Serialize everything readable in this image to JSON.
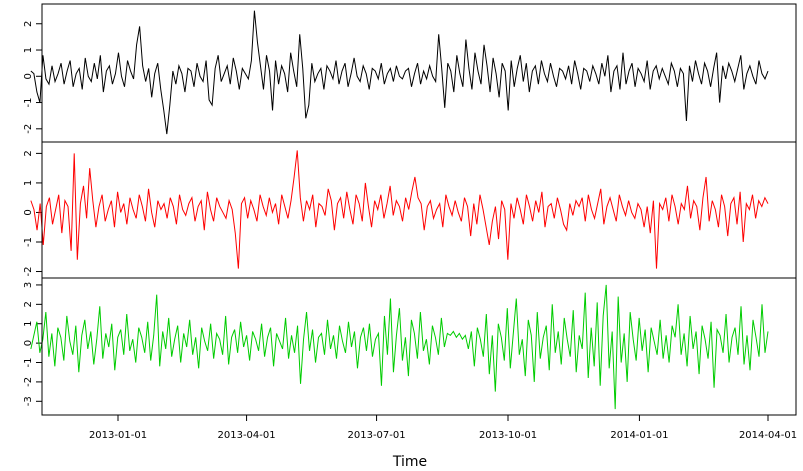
{
  "chart_data": {
    "type": "line",
    "xlabel": "Time",
    "x_start": "2012-11-01",
    "x_end": "2014-04-01",
    "x_ticks": [
      "2013-01-01",
      "2013-04-01",
      "2013-07-01",
      "2013-10-01",
      "2014-01-01",
      "2014-04-01"
    ],
    "panels": [
      {
        "color": "#000000",
        "ylim": [
          -2.35,
          2.6
        ],
        "yticks": [
          "-2",
          "-1",
          "0",
          "1",
          "2"
        ],
        "values": [
          0.2,
          0.1,
          -0.6,
          -1.0,
          0.8,
          -0.1,
          -0.3,
          0.4,
          -0.2,
          0.1,
          0.5,
          -0.3,
          0.2,
          0.6,
          -0.4,
          0.1,
          0.3,
          -0.5,
          0.7,
          0.0,
          -0.2,
          0.5,
          -0.1,
          0.8,
          -0.6,
          0.2,
          0.4,
          -0.3,
          0.1,
          0.9,
          0.0,
          -0.4,
          0.6,
          0.2,
          -0.1,
          1.2,
          1.9,
          0.4,
          -0.2,
          0.3,
          -0.8,
          0.1,
          0.5,
          -0.5,
          -1.3,
          -2.2,
          -1.1,
          0.2,
          -0.3,
          0.4,
          0.1,
          -0.6,
          0.3,
          0.2,
          -0.4,
          0.5,
          0.0,
          -0.2,
          0.6,
          -0.9,
          -1.1,
          0.3,
          0.8,
          -0.2,
          0.1,
          0.4,
          -0.3,
          0.7,
          0.2,
          -0.5,
          0.3,
          0.1,
          -0.1,
          0.6,
          2.5,
          1.3,
          0.4,
          -0.5,
          0.8,
          0.2,
          -1.3,
          0.6,
          -0.3,
          0.4,
          0.1,
          -0.6,
          0.9,
          0.2,
          -0.4,
          1.6,
          0.3,
          -1.6,
          -1.1,
          0.5,
          -0.2,
          0.1,
          0.3,
          -0.5,
          0.4,
          0.2,
          -0.1,
          0.6,
          -0.3,
          0.2,
          0.5,
          -0.4,
          0.1,
          0.7,
          0.0,
          -0.2,
          0.4,
          0.1,
          -0.5,
          0.3,
          0.2,
          -0.1,
          0.5,
          -0.3,
          0.1,
          0.3,
          -0.2,
          0.4,
          0.0,
          -0.1,
          0.2,
          0.3,
          -0.4,
          0.1,
          0.5,
          -0.3,
          0.2,
          -0.1,
          0.4,
          0.0,
          -0.2,
          1.6,
          0.3,
          -1.2,
          0.5,
          0.2,
          -0.6,
          0.8,
          0.1,
          -0.4,
          1.4,
          0.3,
          -0.5,
          0.9,
          0.2,
          -0.3,
          1.2,
          0.4,
          -0.6,
          0.7,
          0.1,
          -0.8,
          0.5,
          0.2,
          -1.3,
          0.6,
          -0.4,
          0.3,
          0.8,
          -0.2,
          0.5,
          -0.6,
          0.2,
          0.4,
          -0.3,
          0.6,
          0.1,
          -0.2,
          0.5,
          0.0,
          -0.4,
          0.3,
          0.2,
          -0.1,
          0.4,
          -0.3,
          0.6,
          0.1,
          -0.5,
          0.3,
          0.2,
          -0.2,
          0.4,
          0.1,
          -0.3,
          0.5,
          0.0,
          0.8,
          -0.6,
          0.2,
          0.4,
          -0.5,
          0.9,
          -0.3,
          0.2,
          0.5,
          -0.4,
          0.3,
          0.1,
          -0.2,
          0.6,
          -0.5,
          0.2,
          0.4,
          -0.1,
          0.3,
          0.0,
          -0.3,
          0.5,
          0.2,
          -0.4,
          0.3,
          0.1,
          -1.7,
          0.4,
          -0.2,
          0.6,
          0.1,
          -0.3,
          0.5,
          0.2,
          -0.4,
          0.3,
          0.9,
          -1.0,
          0.4,
          -0.1,
          0.5,
          0.2,
          -0.2,
          0.3,
          0.8,
          -0.5,
          0.1,
          0.4,
          0.0,
          -0.3,
          0.6,
          0.1,
          -0.1,
          0.2
        ]
      },
      {
        "color": "#ff0000",
        "ylim": [
          -2.05,
          2.25
        ],
        "yticks": [
          "-2",
          "-1",
          "0",
          "1",
          "2"
        ],
        "values": [
          0.4,
          0.1,
          -0.6,
          0.3,
          -1.1,
          0.2,
          0.5,
          -0.4,
          0.1,
          0.6,
          -0.7,
          0.4,
          0.2,
          -1.3,
          2.0,
          -1.6,
          0.3,
          0.9,
          -0.2,
          1.5,
          0.4,
          -0.5,
          0.2,
          0.6,
          -0.3,
          0.1,
          0.4,
          -0.5,
          0.7,
          0.0,
          0.3,
          -0.4,
          0.5,
          0.1,
          -0.2,
          0.6,
          0.2,
          -0.3,
          0.8,
          0.0,
          -0.5,
          0.4,
          0.1,
          0.3,
          -0.2,
          0.5,
          0.2,
          -0.4,
          0.6,
          0.1,
          -0.1,
          0.3,
          0.5,
          -0.3,
          0.2,
          0.4,
          -0.6,
          0.7,
          0.1,
          -0.3,
          0.5,
          0.2,
          0.0,
          -0.2,
          0.4,
          0.1,
          -0.7,
          -1.9,
          0.3,
          0.5,
          -0.2,
          0.4,
          0.1,
          -0.3,
          0.6,
          0.2,
          -0.1,
          0.5,
          0.0,
          0.3,
          -0.4,
          0.6,
          0.2,
          -0.2,
          0.4,
          1.2,
          2.1,
          0.5,
          -0.3,
          0.4,
          0.1,
          0.6,
          -0.5,
          0.3,
          0.2,
          -0.1,
          0.8,
          0.4,
          -0.6,
          0.3,
          0.5,
          -0.2,
          0.7,
          0.1,
          -0.4,
          0.6,
          0.3,
          -0.3,
          1.0,
          0.2,
          -0.5,
          0.4,
          0.1,
          0.6,
          -0.2,
          0.3,
          0.9,
          -0.1,
          0.4,
          0.2,
          -0.3,
          0.5,
          0.1,
          0.7,
          1.2,
          0.5,
          0.3,
          -0.6,
          0.2,
          0.4,
          -0.2,
          0.1,
          0.3,
          -0.5,
          0.6,
          0.2,
          -0.1,
          0.4,
          0.0,
          -0.3,
          0.5,
          0.2,
          -0.8,
          0.3,
          -0.4,
          0.6,
          0.1,
          -0.5,
          -1.1,
          -0.3,
          0.2,
          -0.9,
          0.4,
          0.1,
          -1.6,
          0.3,
          -0.2,
          0.5,
          0.1,
          -0.4,
          0.6,
          0.2,
          -0.3,
          0.4,
          0.0,
          0.7,
          -0.5,
          0.2,
          0.3,
          -0.2,
          0.5,
          0.1,
          -0.4,
          -0.6,
          0.3,
          -0.1,
          0.4,
          0.2,
          0.5,
          -0.3,
          0.6,
          0.1,
          -0.2,
          0.3,
          0.8,
          -0.4,
          0.2,
          0.5,
          0.1,
          -0.3,
          0.6,
          0.2,
          -0.1,
          0.4,
          0.0,
          -0.2,
          0.3,
          0.1,
          -0.5,
          0.2,
          -0.7,
          0.4,
          -1.9,
          0.3,
          0.1,
          0.5,
          -0.3,
          0.6,
          0.2,
          -0.4,
          0.3,
          0.1,
          0.9,
          -0.2,
          0.4,
          0.2,
          -0.6,
          0.5,
          1.2,
          -0.3,
          0.4,
          0.1,
          -0.5,
          0.6,
          0.2,
          -0.8,
          0.3,
          0.5,
          -0.4,
          0.7,
          -1.0,
          0.3,
          0.1,
          0.6,
          -0.2,
          0.4,
          0.2,
          0.5,
          0.3
        ]
      },
      {
        "color": "#00cc00",
        "ylim": [
          -3.5,
          3.1
        ],
        "yticks": [
          "-3",
          "-2",
          "-1",
          "0",
          "1",
          "2",
          "3"
        ],
        "values": [
          -0.3,
          0.4,
          1.1,
          -0.5,
          0.2,
          1.6,
          -0.7,
          0.5,
          -1.2,
          0.8,
          0.3,
          -0.9,
          1.4,
          0.1,
          -0.6,
          0.9,
          -1.5,
          0.4,
          1.2,
          -0.3,
          0.6,
          -1.1,
          0.2,
          1.9,
          -0.8,
          0.5,
          -0.2,
          1.0,
          -1.4,
          0.3,
          0.7,
          -0.6,
          1.5,
          -0.4,
          0.2,
          -1.0,
          0.8,
          0.3,
          -0.5,
          1.1,
          -0.9,
          0.4,
          2.5,
          -1.2,
          0.6,
          -0.3,
          1.3,
          -0.7,
          0.2,
          0.9,
          -1.0,
          0.5,
          -0.2,
          1.2,
          -0.6,
          0.3,
          -1.3,
          0.8,
          0.1,
          -0.4,
          1.0,
          -0.8,
          0.5,
          0.2,
          -0.6,
          1.4,
          -1.1,
          0.3,
          0.7,
          -0.5,
          1.1,
          -0.2,
          0.4,
          -0.9,
          0.6,
          0.2,
          -0.4,
          1.0,
          -0.7,
          0.3,
          0.8,
          -1.2,
          0.5,
          0.1,
          -0.3,
          1.3,
          -0.8,
          0.4,
          -0.5,
          0.9,
          -2.1,
          0.2,
          1.6,
          -0.4,
          0.7,
          -1.0,
          0.3,
          0.5,
          -0.6,
          1.2,
          -0.3,
          0.4,
          -0.8,
          0.9,
          0.1,
          -0.5,
          1.1,
          -0.2,
          0.6,
          -1.3,
          0.3,
          0.8,
          -0.4,
          1.0,
          -0.7,
          0.2,
          0.5,
          -2.2,
          1.4,
          -0.6,
          2.3,
          -1.5,
          0.4,
          1.8,
          -0.9,
          0.3,
          -1.7,
          1.2,
          0.5,
          -0.8,
          1.6,
          -0.4,
          0.2,
          -1.1,
          0.9,
          0.3,
          -0.6,
          1.3,
          -0.2,
          0.5,
          0.4,
          0.6,
          0.3,
          0.5,
          0.2,
          0.4,
          -0.3,
          0.6,
          -1.2,
          0.8,
          0.2,
          -0.7,
          1.5,
          -1.6,
          0.4,
          -2.5,
          1.0,
          0.3,
          -0.9,
          1.8,
          -1.3,
          0.5,
          2.3,
          -0.6,
          0.2,
          -1.7,
          1.2,
          0.4,
          -2.0,
          1.6,
          -0.8,
          0.3,
          0.9,
          -1.4,
          2.0,
          -0.5,
          0.6,
          -1.1,
          1.3,
          0.2,
          -0.7,
          1.7,
          -1.5,
          0.4,
          -0.3,
          2.6,
          -1.8,
          0.8,
          -1.2,
          2.1,
          -2.2,
          1.4,
          3.0,
          -1.3,
          0.6,
          -3.4,
          2.4,
          -1.0,
          0.5,
          -2.0,
          1.6,
          0.2,
          -0.9,
          1.3,
          -0.4,
          0.7,
          -1.5,
          0.8,
          0.1,
          -0.6,
          1.2,
          -0.8,
          0.4,
          -1.0,
          0.9,
          0.3,
          2.0,
          -0.6,
          0.5,
          -1.2,
          1.4,
          -0.3,
          0.6,
          -1.6,
          0.9,
          0.2,
          -0.8,
          1.1,
          -2.3,
          0.7,
          0.4,
          -0.5,
          1.5,
          -1.0,
          0.3,
          0.8,
          -0.6,
          1.9,
          -1.1,
          0.4,
          -1.4,
          1.2,
          0.3,
          -0.7,
          2.0,
          -0.5,
          0.6
        ]
      }
    ]
  }
}
